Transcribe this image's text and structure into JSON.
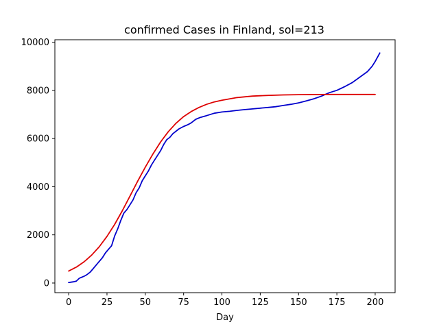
{
  "chart_data": {
    "type": "line",
    "title": "confirmed Cases in Finland, sol=213",
    "xlabel": "Day",
    "ylabel": "",
    "xlim": [
      -9,
      213
    ],
    "ylim": [
      -400,
      10100
    ],
    "x_ticks": [
      0,
      25,
      50,
      75,
      100,
      125,
      150,
      175,
      200
    ],
    "y_ticks": [
      0,
      2000,
      4000,
      6000,
      8000,
      10000
    ],
    "grid": false,
    "legend": "none",
    "series": [
      {
        "color": "#0000cc",
        "style": "solid",
        "points": [
          [
            0,
            20
          ],
          [
            3,
            50
          ],
          [
            5,
            80
          ],
          [
            7,
            200
          ],
          [
            10,
            280
          ],
          [
            12,
            350
          ],
          [
            14,
            450
          ],
          [
            16,
            600
          ],
          [
            18,
            750
          ],
          [
            20,
            900
          ],
          [
            22,
            1050
          ],
          [
            24,
            1250
          ],
          [
            26,
            1400
          ],
          [
            28,
            1550
          ],
          [
            30,
            1950
          ],
          [
            32,
            2250
          ],
          [
            34,
            2600
          ],
          [
            36,
            2900
          ],
          [
            38,
            3050
          ],
          [
            40,
            3250
          ],
          [
            42,
            3450
          ],
          [
            44,
            3750
          ],
          [
            46,
            3950
          ],
          [
            48,
            4250
          ],
          [
            50,
            4450
          ],
          [
            52,
            4650
          ],
          [
            54,
            4900
          ],
          [
            56,
            5100
          ],
          [
            58,
            5300
          ],
          [
            60,
            5500
          ],
          [
            62,
            5750
          ],
          [
            64,
            5950
          ],
          [
            66,
            6050
          ],
          [
            68,
            6200
          ],
          [
            70,
            6300
          ],
          [
            72,
            6400
          ],
          [
            75,
            6500
          ],
          [
            78,
            6580
          ],
          [
            80,
            6650
          ],
          [
            83,
            6800
          ],
          [
            86,
            6880
          ],
          [
            90,
            6950
          ],
          [
            95,
            7050
          ],
          [
            100,
            7100
          ],
          [
            105,
            7130
          ],
          [
            110,
            7170
          ],
          [
            115,
            7200
          ],
          [
            120,
            7230
          ],
          [
            125,
            7260
          ],
          [
            130,
            7290
          ],
          [
            135,
            7320
          ],
          [
            140,
            7370
          ],
          [
            145,
            7420
          ],
          [
            150,
            7480
          ],
          [
            155,
            7560
          ],
          [
            160,
            7650
          ],
          [
            165,
            7760
          ],
          [
            170,
            7900
          ],
          [
            175,
            8000
          ],
          [
            180,
            8150
          ],
          [
            185,
            8320
          ],
          [
            190,
            8550
          ],
          [
            195,
            8780
          ],
          [
            198,
            9000
          ],
          [
            200,
            9200
          ],
          [
            203,
            9550
          ]
        ]
      },
      {
        "color": "#dd0000",
        "style": "solid",
        "points": [
          [
            0,
            500
          ],
          [
            5,
            660
          ],
          [
            10,
            880
          ],
          [
            15,
            1160
          ],
          [
            20,
            1510
          ],
          [
            25,
            1940
          ],
          [
            30,
            2430
          ],
          [
            35,
            3000
          ],
          [
            40,
            3610
          ],
          [
            45,
            4220
          ],
          [
            50,
            4810
          ],
          [
            55,
            5360
          ],
          [
            60,
            5860
          ],
          [
            65,
            6280
          ],
          [
            70,
            6630
          ],
          [
            75,
            6910
          ],
          [
            80,
            7120
          ],
          [
            85,
            7290
          ],
          [
            90,
            7420
          ],
          [
            95,
            7520
          ],
          [
            100,
            7590
          ],
          [
            110,
            7700
          ],
          [
            120,
            7760
          ],
          [
            130,
            7790
          ],
          [
            140,
            7810
          ],
          [
            150,
            7820
          ],
          [
            170,
            7830
          ],
          [
            200,
            7830
          ]
        ]
      }
    ]
  }
}
